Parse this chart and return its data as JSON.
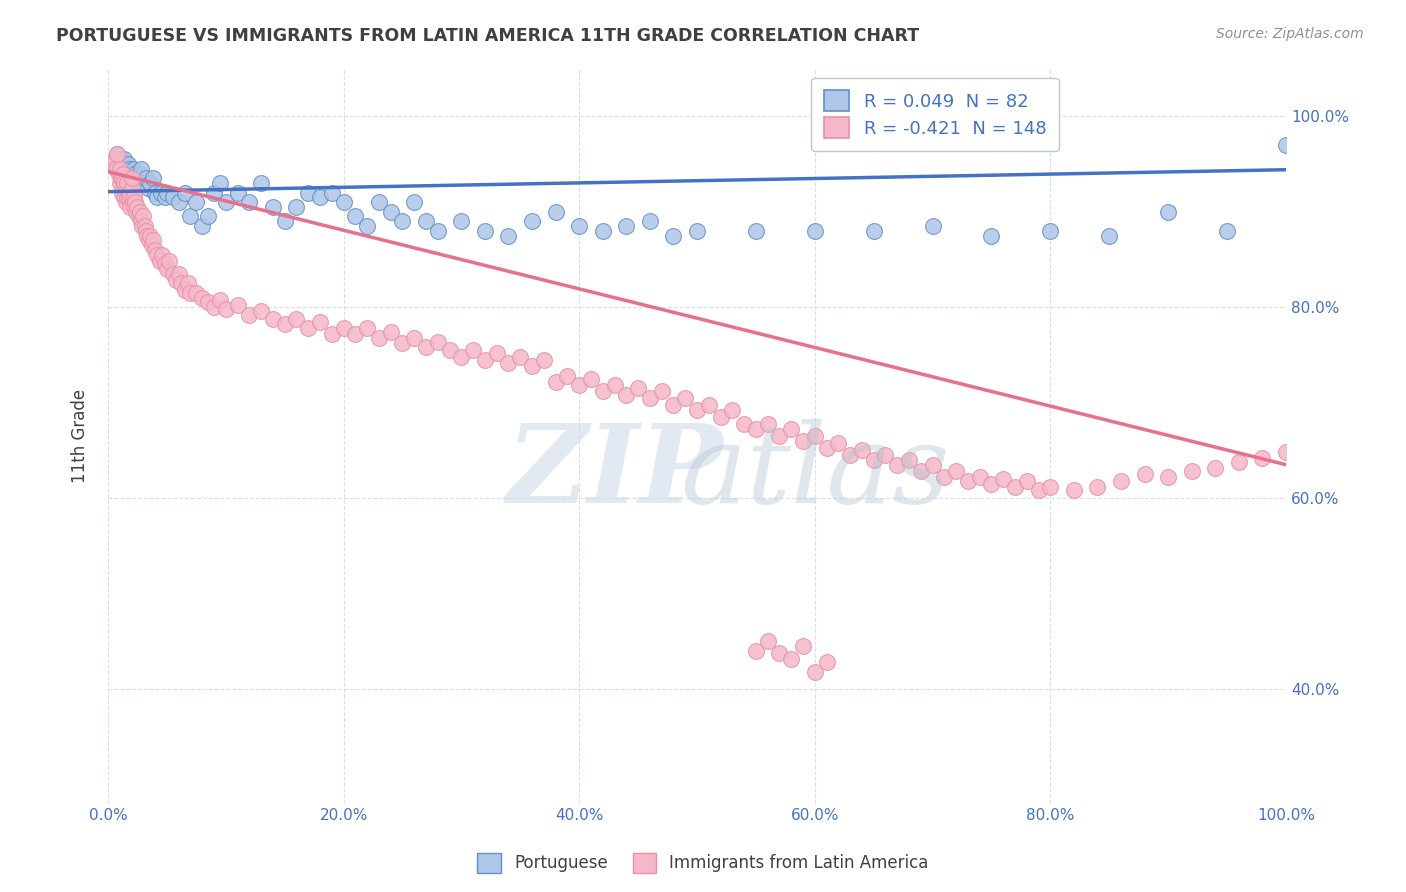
{
  "title": "PORTUGUESE VS IMMIGRANTS FROM LATIN AMERICA 11TH GRADE CORRELATION CHART",
  "source": "Source: ZipAtlas.com",
  "ylabel": "11th Grade",
  "xlim": [
    0.0,
    1.0
  ],
  "ylim": [
    0.28,
    1.05
  ],
  "yticks": [
    0.4,
    0.6,
    0.8,
    1.0
  ],
  "ytick_labels": [
    "40.0%",
    "60.0%",
    "80.0%",
    "100.0%"
  ],
  "xticks": [
    0.0,
    0.2,
    0.4,
    0.6,
    0.8,
    1.0
  ],
  "xtick_labels": [
    "0.0%",
    "20.0%",
    "40.0%",
    "60.0%",
    "80.0%",
    "100.0%"
  ],
  "portuguese_R": "0.049",
  "portuguese_N": "82",
  "immigrants_R": "-0.421",
  "immigrants_N": "148",
  "portuguese_color": "#aec6e8",
  "immigrants_color": "#f5b8c8",
  "portuguese_edge_color": "#6090c8",
  "immigrants_edge_color": "#e890a8",
  "portuguese_line_color": "#4472c4",
  "immigrants_line_color": "#e8708a",
  "legend_text_color": "#4472c4",
  "title_color": "#404040",
  "source_color": "#909090",
  "grid_color": "#d8e0e8",
  "portuguese_trendline_x": [
    0.0,
    1.0
  ],
  "portuguese_trendline_y": [
    0.921,
    0.944
  ],
  "immigrants_trendline_x": [
    0.0,
    1.0
  ],
  "immigrants_trendline_y": [
    0.942,
    0.635
  ],
  "portuguese_x": [
    0.005,
    0.007,
    0.008,
    0.009,
    0.01,
    0.011,
    0.012,
    0.013,
    0.014,
    0.015,
    0.016,
    0.017,
    0.018,
    0.019,
    0.02,
    0.021,
    0.022,
    0.023,
    0.024,
    0.025,
    0.026,
    0.027,
    0.028,
    0.03,
    0.032,
    0.034,
    0.036,
    0.038,
    0.04,
    0.042,
    0.045,
    0.048,
    0.05,
    0.055,
    0.06,
    0.065,
    0.07,
    0.075,
    0.08,
    0.085,
    0.09,
    0.095,
    0.1,
    0.11,
    0.12,
    0.13,
    0.14,
    0.15,
    0.16,
    0.17,
    0.18,
    0.19,
    0.2,
    0.21,
    0.22,
    0.23,
    0.24,
    0.25,
    0.26,
    0.27,
    0.28,
    0.3,
    0.32,
    0.34,
    0.36,
    0.38,
    0.4,
    0.42,
    0.44,
    0.46,
    0.48,
    0.5,
    0.55,
    0.6,
    0.65,
    0.7,
    0.75,
    0.8,
    0.85,
    0.9,
    0.95,
    1.0
  ],
  "portuguese_y": [
    0.95,
    0.955,
    0.96,
    0.945,
    0.95,
    0.955,
    0.945,
    0.95,
    0.955,
    0.94,
    0.945,
    0.95,
    0.94,
    0.945,
    0.935,
    0.94,
    0.945,
    0.94,
    0.935,
    0.93,
    0.935,
    0.94,
    0.945,
    0.93,
    0.935,
    0.925,
    0.93,
    0.935,
    0.92,
    0.915,
    0.92,
    0.915,
    0.92,
    0.915,
    0.91,
    0.92,
    0.895,
    0.91,
    0.885,
    0.895,
    0.92,
    0.93,
    0.91,
    0.92,
    0.91,
    0.93,
    0.905,
    0.89,
    0.905,
    0.92,
    0.915,
    0.92,
    0.91,
    0.895,
    0.885,
    0.91,
    0.9,
    0.89,
    0.91,
    0.89,
    0.88,
    0.89,
    0.88,
    0.875,
    0.89,
    0.9,
    0.885,
    0.88,
    0.885,
    0.89,
    0.875,
    0.88,
    0.88,
    0.88,
    0.88,
    0.885,
    0.875,
    0.88,
    0.875,
    0.9,
    0.88,
    0.97
  ],
  "immigrants_x": [
    0.005,
    0.006,
    0.007,
    0.008,
    0.009,
    0.01,
    0.01,
    0.011,
    0.012,
    0.012,
    0.013,
    0.013,
    0.014,
    0.014,
    0.015,
    0.015,
    0.016,
    0.016,
    0.017,
    0.018,
    0.019,
    0.019,
    0.02,
    0.02,
    0.021,
    0.022,
    0.022,
    0.023,
    0.024,
    0.025,
    0.026,
    0.027,
    0.028,
    0.029,
    0.03,
    0.031,
    0.032,
    0.033,
    0.035,
    0.036,
    0.037,
    0.038,
    0.04,
    0.042,
    0.044,
    0.046,
    0.048,
    0.05,
    0.052,
    0.055,
    0.058,
    0.06,
    0.062,
    0.065,
    0.068,
    0.07,
    0.075,
    0.08,
    0.085,
    0.09,
    0.095,
    0.1,
    0.11,
    0.12,
    0.13,
    0.14,
    0.15,
    0.16,
    0.17,
    0.18,
    0.19,
    0.2,
    0.21,
    0.22,
    0.23,
    0.24,
    0.25,
    0.26,
    0.27,
    0.28,
    0.29,
    0.3,
    0.31,
    0.32,
    0.33,
    0.34,
    0.35,
    0.36,
    0.37,
    0.38,
    0.39,
    0.4,
    0.41,
    0.42,
    0.43,
    0.44,
    0.45,
    0.46,
    0.47,
    0.48,
    0.49,
    0.5,
    0.51,
    0.52,
    0.53,
    0.54,
    0.55,
    0.56,
    0.57,
    0.58,
    0.59,
    0.6,
    0.61,
    0.62,
    0.63,
    0.64,
    0.65,
    0.66,
    0.67,
    0.68,
    0.69,
    0.7,
    0.71,
    0.72,
    0.73,
    0.74,
    0.75,
    0.76,
    0.77,
    0.78,
    0.79,
    0.8,
    0.82,
    0.84,
    0.86,
    0.88,
    0.9,
    0.92,
    0.94,
    0.96,
    0.98,
    1.0,
    0.55,
    0.56,
    0.57,
    0.58,
    0.59,
    0.6,
    0.61
  ],
  "immigrants_y": [
    0.95,
    0.955,
    0.945,
    0.96,
    0.94,
    0.93,
    0.945,
    0.935,
    0.92,
    0.935,
    0.925,
    0.94,
    0.915,
    0.93,
    0.91,
    0.925,
    0.915,
    0.93,
    0.92,
    0.915,
    0.905,
    0.92,
    0.925,
    0.935,
    0.91,
    0.905,
    0.915,
    0.91,
    0.9,
    0.905,
    0.895,
    0.9,
    0.89,
    0.885,
    0.895,
    0.885,
    0.88,
    0.875,
    0.87,
    0.875,
    0.865,
    0.87,
    0.86,
    0.855,
    0.848,
    0.855,
    0.845,
    0.84,
    0.848,
    0.835,
    0.828,
    0.835,
    0.825,
    0.818,
    0.825,
    0.815,
    0.815,
    0.81,
    0.805,
    0.8,
    0.808,
    0.798,
    0.802,
    0.792,
    0.796,
    0.788,
    0.782,
    0.788,
    0.778,
    0.784,
    0.772,
    0.778,
    0.772,
    0.778,
    0.768,
    0.774,
    0.762,
    0.768,
    0.758,
    0.764,
    0.755,
    0.748,
    0.755,
    0.745,
    0.752,
    0.742,
    0.748,
    0.738,
    0.745,
    0.722,
    0.728,
    0.718,
    0.725,
    0.712,
    0.718,
    0.708,
    0.715,
    0.705,
    0.712,
    0.698,
    0.705,
    0.692,
    0.698,
    0.685,
    0.692,
    0.678,
    0.672,
    0.678,
    0.665,
    0.672,
    0.66,
    0.665,
    0.652,
    0.658,
    0.645,
    0.65,
    0.64,
    0.645,
    0.635,
    0.64,
    0.628,
    0.635,
    0.622,
    0.628,
    0.618,
    0.622,
    0.615,
    0.62,
    0.612,
    0.618,
    0.608,
    0.612,
    0.608,
    0.612,
    0.618,
    0.625,
    0.622,
    0.628,
    0.632,
    0.638,
    0.642,
    0.648,
    0.44,
    0.45,
    0.438,
    0.432,
    0.445,
    0.418,
    0.428
  ]
}
